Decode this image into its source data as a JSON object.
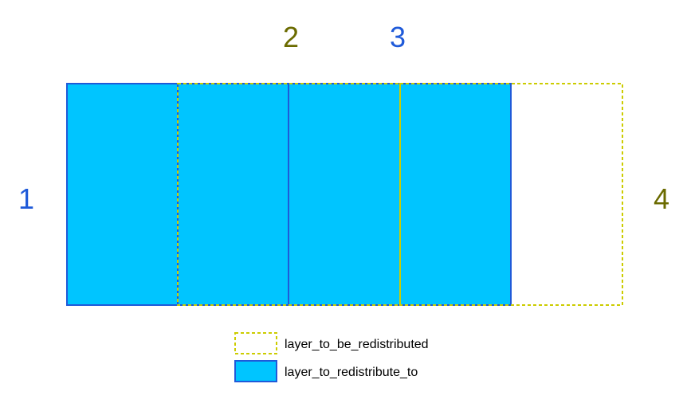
{
  "labels": {
    "one": "1",
    "two": "2",
    "three": "3",
    "four": "4"
  },
  "legend": {
    "dashed_label": "layer_to_be_redistributed",
    "filled_label": "layer_to_redistribute_to"
  },
  "colors": {
    "fill": "#00C5FF",
    "solid_stroke": "#1F5AD9",
    "dashed_stroke": "#CCCC00",
    "label_olive": "#6B6B00",
    "label_blue": "#1F5AD9"
  }
}
